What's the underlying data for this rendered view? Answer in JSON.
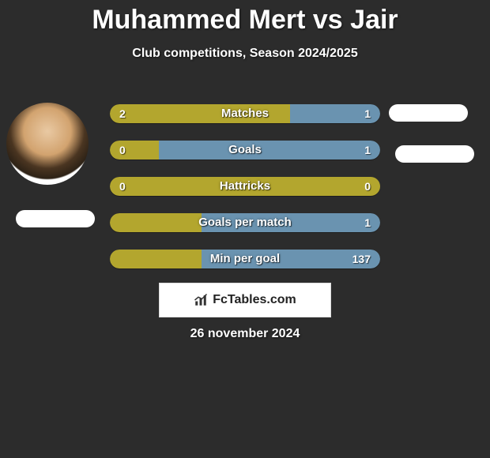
{
  "header": {
    "title": "Muhammed Mert vs Jair",
    "subtitle": "Club competitions, Season 2024/2025"
  },
  "colors": {
    "background": "#2c2c2c",
    "left_bar": "#b3a62e",
    "right_bar": "#6a93b0",
    "text": "#ffffff"
  },
  "rows": [
    {
      "label": "Matches",
      "left_value": "2",
      "right_value": "1",
      "left_pct": 66.7
    },
    {
      "label": "Goals",
      "left_value": "0",
      "right_value": "1",
      "left_pct": 18.0
    },
    {
      "label": "Hattricks",
      "left_value": "0",
      "right_value": "0",
      "left_pct": 100.0
    },
    {
      "label": "Goals per match",
      "left_value": "",
      "right_value": "1",
      "left_pct": 34.0
    },
    {
      "label": "Min per goal",
      "left_value": "",
      "right_value": "137",
      "left_pct": 34.0
    }
  ],
  "branding": {
    "label": "FcTables.com"
  },
  "date": "26 november 2024"
}
